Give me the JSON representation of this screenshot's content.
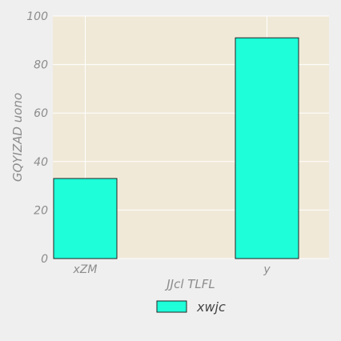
{
  "chart_data": {
    "type": "bar",
    "categories": [
      "xZM",
      "y"
    ],
    "series": [
      {
        "name": "xwjc",
        "values": [
          33,
          91
        ]
      }
    ],
    "xlabel": "JJcl TLFL",
    "ylabel": "GQYIZAD uono",
    "ylim": [
      0,
      100
    ],
    "yticks": [
      0,
      20,
      40,
      60,
      80,
      100
    ],
    "grid": true,
    "legend_position": "bottom-center"
  },
  "colors": {
    "bar_fill": "#1effd9",
    "bar_stroke": "#222222",
    "plot_background": "#f0e9d8",
    "grid": "#ffffff"
  }
}
